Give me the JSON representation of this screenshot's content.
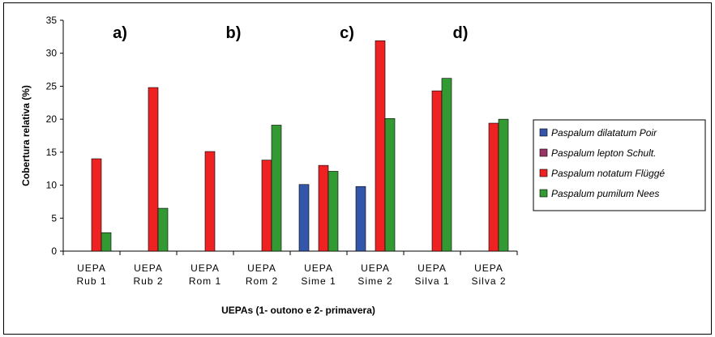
{
  "chart_data": {
    "type": "bar",
    "title": "",
    "xlabel": "UEPAs (1- outono e 2- primavera)",
    "ylabel": "Cobertura relativa (%)",
    "ylim": [
      0,
      35
    ],
    "yticks": [
      "0",
      "5",
      "10",
      "15",
      "20",
      "25",
      "30",
      "35"
    ],
    "grid": false,
    "legend_position": "right",
    "categories": [
      [
        "UEPA",
        "Rub 1"
      ],
      [
        "UEPA",
        "Rub 2"
      ],
      [
        "UEPA",
        "Rom 1"
      ],
      [
        "UEPA",
        "Rom 2"
      ],
      [
        "UEPA",
        "Sime 1"
      ],
      [
        "UEPA",
        "Sime 2"
      ],
      [
        "UEPA",
        "Silva 1"
      ],
      [
        "UEPA",
        "Silva 2"
      ]
    ],
    "panel_labels": [
      {
        "text": "a)",
        "category_index": 0.5
      },
      {
        "text": "b)",
        "category_index": 2.5
      },
      {
        "text": "c)",
        "category_index": 4.5
      },
      {
        "text": "d)",
        "category_index": 6.5
      }
    ],
    "series": [
      {
        "name": "Paspalum dilatatum Poir",
        "color": "#3355aa",
        "values": [
          0,
          0,
          0,
          0,
          10.1,
          9.8,
          0,
          0
        ]
      },
      {
        "name": "Paspalum lepton Schult.",
        "color": "#993366",
        "values": [
          0,
          0,
          0,
          0,
          0,
          0,
          0,
          0
        ]
      },
      {
        "name": "Paspalum notatum Flüggé",
        "color": "#ee2222",
        "values": [
          14.0,
          24.8,
          15.1,
          13.8,
          13.0,
          31.9,
          24.3,
          19.4
        ]
      },
      {
        "name": "Paspalum pumilum Nees",
        "color": "#339933",
        "values": [
          2.8,
          6.5,
          0,
          19.1,
          12.1,
          20.1,
          26.2,
          20.0
        ]
      }
    ]
  }
}
